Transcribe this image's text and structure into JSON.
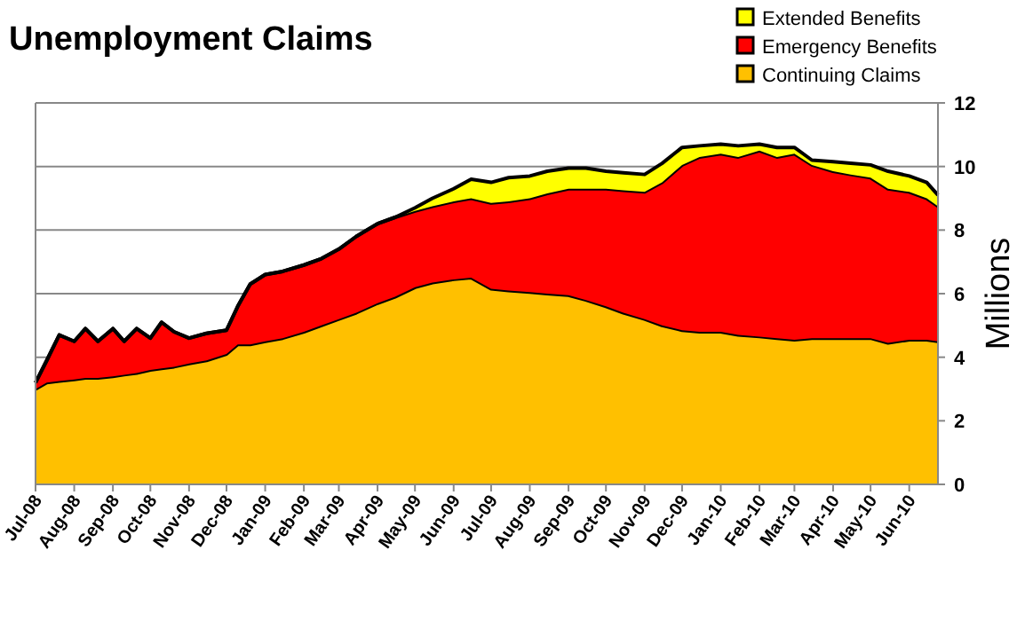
{
  "chart_data": {
    "type": "area",
    "title": "Unemployment Claims",
    "ylabel": "Millions",
    "stacked": true,
    "legend": "top right",
    "grid": "y",
    "x": [
      "2008-07-01",
      "2008-07-10",
      "2008-07-20",
      "2008-08-01",
      "2008-08-10",
      "2008-08-20",
      "2008-09-01",
      "2008-09-10",
      "2008-09-20",
      "2008-10-01",
      "2008-10-10",
      "2008-10-20",
      "2008-11-01",
      "2008-11-15",
      "2008-12-01",
      "2008-12-10",
      "2008-12-20",
      "2009-01-01",
      "2009-01-15",
      "2009-02-01",
      "2009-02-15",
      "2009-03-01",
      "2009-03-15",
      "2009-04-01",
      "2009-04-15",
      "2009-05-01",
      "2009-05-15",
      "2009-06-01",
      "2009-06-15",
      "2009-07-01",
      "2009-07-15",
      "2009-08-01",
      "2009-08-15",
      "2009-09-01",
      "2009-09-15",
      "2009-10-01",
      "2009-10-15",
      "2009-11-01",
      "2009-11-15",
      "2009-12-01",
      "2009-12-15",
      "2010-01-01",
      "2010-01-15",
      "2010-02-01",
      "2010-02-15",
      "2010-03-01",
      "2010-03-15",
      "2010-04-01",
      "2010-04-15",
      "2010-05-01",
      "2010-05-15",
      "2010-06-01",
      "2010-06-15",
      "2010-06-24"
    ],
    "series": [
      {
        "name": "Continuing Claims",
        "color": "#ffc000",
        "values": [
          3.0,
          3.2,
          3.25,
          3.3,
          3.35,
          3.35,
          3.4,
          3.45,
          3.5,
          3.6,
          3.65,
          3.7,
          3.8,
          3.9,
          4.1,
          4.4,
          4.4,
          4.5,
          4.6,
          4.8,
          5.0,
          5.2,
          5.4,
          5.7,
          5.9,
          6.2,
          6.35,
          6.45,
          6.5,
          6.15,
          6.1,
          6.05,
          6.0,
          5.95,
          5.8,
          5.6,
          5.4,
          5.2,
          5.0,
          4.85,
          4.8,
          4.8,
          4.7,
          4.65,
          4.6,
          4.55,
          4.6,
          4.6,
          4.6,
          4.6,
          4.45,
          4.55,
          4.55,
          4.5
        ]
      },
      {
        "name": "Emergency Benefits",
        "color": "#ff0000",
        "values": [
          0.2,
          0.7,
          1.45,
          1.2,
          1.55,
          1.15,
          1.5,
          1.05,
          1.4,
          1.0,
          1.45,
          1.1,
          0.8,
          0.85,
          0.75,
          1.2,
          1.9,
          2.1,
          2.1,
          2.1,
          2.1,
          2.2,
          2.4,
          2.5,
          2.5,
          2.4,
          2.4,
          2.45,
          2.5,
          2.7,
          2.8,
          2.95,
          3.15,
          3.35,
          3.5,
          3.7,
          3.85,
          4.0,
          4.5,
          5.2,
          5.5,
          5.6,
          5.6,
          5.85,
          5.7,
          5.85,
          5.45,
          5.25,
          5.15,
          5.05,
          4.85,
          4.65,
          4.45,
          4.25
        ]
      },
      {
        "name": "Extended Benefits",
        "color": "#ffff00",
        "values": [
          0,
          0,
          0,
          0,
          0,
          0,
          0,
          0,
          0,
          0,
          0,
          0,
          0,
          0,
          0,
          0,
          0,
          0,
          0,
          0,
          0,
          0,
          0,
          0,
          0,
          0.1,
          0.25,
          0.4,
          0.6,
          0.65,
          0.75,
          0.7,
          0.7,
          0.65,
          0.65,
          0.55,
          0.55,
          0.55,
          0.6,
          0.55,
          0.35,
          0.3,
          0.35,
          0.2,
          0.3,
          0.2,
          0.15,
          0.3,
          0.35,
          0.4,
          0.55,
          0.5,
          0.5,
          0.35
        ]
      }
    ],
    "ylim": [
      0,
      12
    ],
    "yticks": [
      0,
      2,
      4,
      6,
      8,
      10,
      12
    ],
    "xlim": [
      "2008-07-01",
      "2010-06-24"
    ],
    "xticks": [
      {
        "value": "2008-07-01",
        "label": "Jul-08"
      },
      {
        "value": "2008-08-01",
        "label": "Aug-08"
      },
      {
        "value": "2008-09-01",
        "label": "Sep-08"
      },
      {
        "value": "2008-10-01",
        "label": "Oct-08"
      },
      {
        "value": "2008-11-01",
        "label": "Nov-08"
      },
      {
        "value": "2008-12-01",
        "label": "Dec-08"
      },
      {
        "value": "2009-01-01",
        "label": "Jan-09"
      },
      {
        "value": "2009-02-01",
        "label": "Feb-09"
      },
      {
        "value": "2009-03-01",
        "label": "Mar-09"
      },
      {
        "value": "2009-04-01",
        "label": "Apr-09"
      },
      {
        "value": "2009-05-01",
        "label": "May-09"
      },
      {
        "value": "2009-06-01",
        "label": "Jun-09"
      },
      {
        "value": "2009-07-01",
        "label": "Jul-09"
      },
      {
        "value": "2009-08-01",
        "label": "Aug-09"
      },
      {
        "value": "2009-09-01",
        "label": "Sep-09"
      },
      {
        "value": "2009-10-01",
        "label": "Oct-09"
      },
      {
        "value": "2009-11-01",
        "label": "Nov-09"
      },
      {
        "value": "2009-12-01",
        "label": "Dec-09"
      },
      {
        "value": "2010-01-01",
        "label": "Jan-10"
      },
      {
        "value": "2010-02-01",
        "label": "Feb-10"
      },
      {
        "value": "2010-03-01",
        "label": "Mar-10"
      },
      {
        "value": "2010-04-01",
        "label": "Apr-10"
      },
      {
        "value": "2010-05-01",
        "label": "May-10"
      },
      {
        "value": "2010-06-01",
        "label": "Jun-10"
      }
    ]
  }
}
